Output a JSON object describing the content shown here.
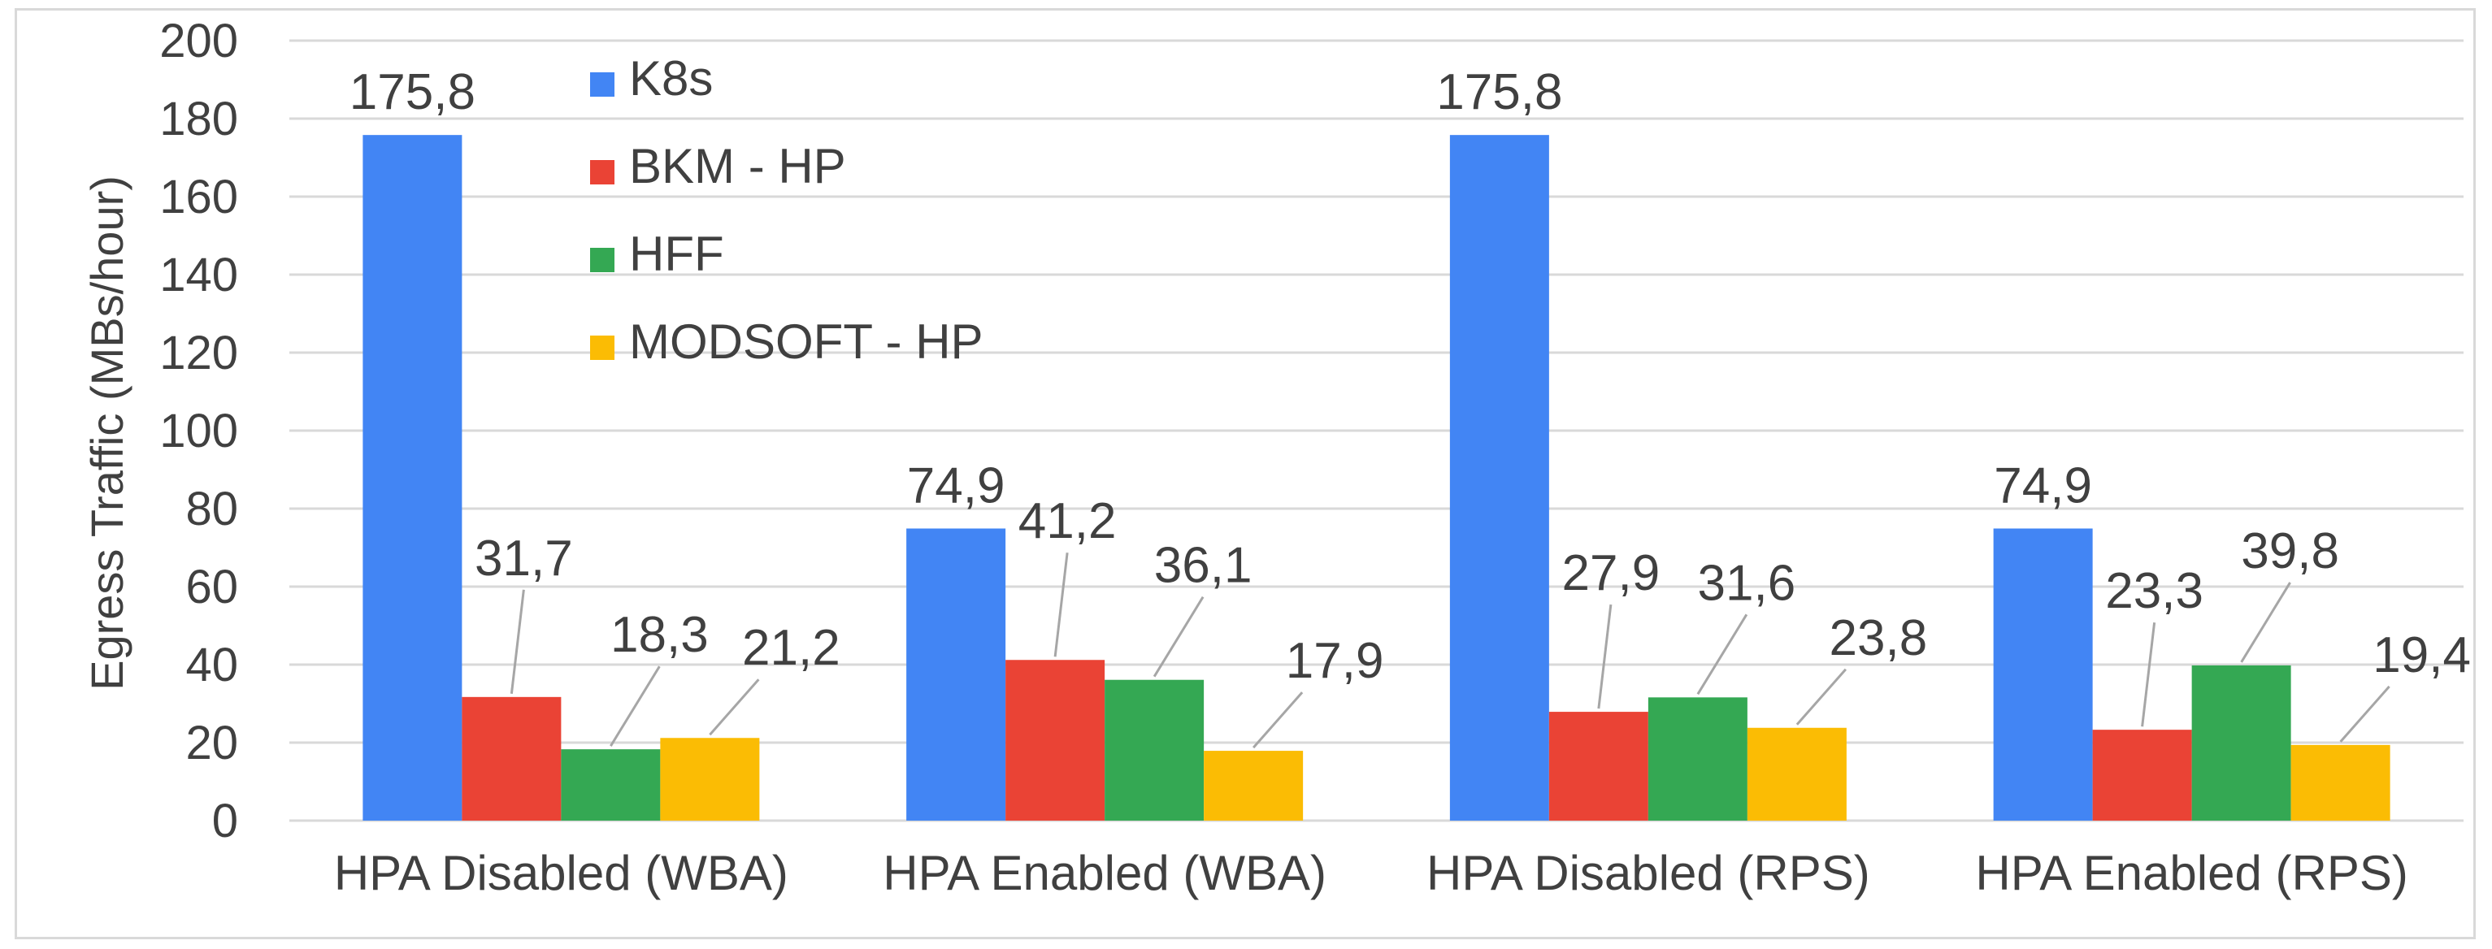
{
  "chart_data": {
    "type": "bar",
    "title": "",
    "xlabel": "",
    "ylabel": "Egress Traffic (MBs/hour)",
    "ylim": [
      0,
      200
    ],
    "yticks": [
      0,
      20,
      40,
      60,
      80,
      100,
      120,
      140,
      160,
      180,
      200
    ],
    "grid": true,
    "legend_position": "top-left-inside",
    "categories": [
      "HPA Disabled (WBA)",
      "HPA Enabled (WBA)",
      "HPA Disabled (RPS)",
      "HPA Enabled (RPS)"
    ],
    "series": [
      {
        "name": "K8s",
        "color": "#4285f4",
        "values": [
          175.8,
          74.9,
          175.8,
          74.9
        ],
        "labels": [
          "175,8",
          "74,9",
          "175,8",
          "74,9"
        ]
      },
      {
        "name": "BKM - HP",
        "color": "#ea4335",
        "values": [
          31.7,
          41.2,
          27.9,
          23.3
        ],
        "labels": [
          "31,7",
          "41,2",
          "27,9",
          "23,3"
        ]
      },
      {
        "name": "HFF",
        "color": "#34a853",
        "values": [
          18.3,
          36.1,
          31.6,
          39.8
        ],
        "labels": [
          "18,3",
          "36,1",
          "31,6",
          "39,8"
        ]
      },
      {
        "name": "MODSOFT - HP",
        "color": "#fbbc04",
        "values": [
          21.2,
          17.9,
          23.8,
          19.4
        ],
        "labels": [
          "21,2",
          "17,9",
          "23,8",
          "19,4"
        ]
      }
    ]
  }
}
